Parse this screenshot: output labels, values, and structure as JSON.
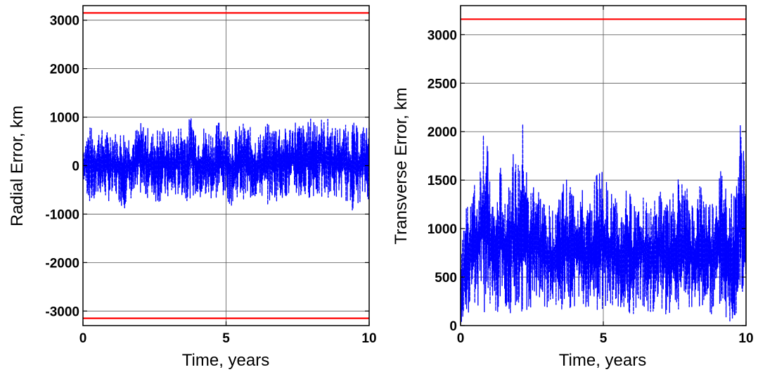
{
  "chart_data": [
    {
      "type": "line",
      "title": "",
      "xlabel": "Time, years",
      "ylabel": "Radial Error, km",
      "xlim": [
        0,
        10
      ],
      "ylim": [
        -3300,
        3300
      ],
      "xticks": [
        0,
        5,
        10
      ],
      "xtick_labels": [
        "0",
        "5",
        "10"
      ],
      "yticks": [
        -3000,
        -2000,
        -1000,
        0,
        1000,
        2000,
        3000
      ],
      "ytick_labels": [
        "-3000",
        "-2000",
        "-1000",
        "0",
        "1000",
        "2000",
        "3000"
      ],
      "grid": true,
      "legend": "none",
      "series": [
        {
          "style": "dashed",
          "color": "#0000ff",
          "x": [
            0,
            0.2,
            0.4,
            0.6,
            0.8,
            1.0,
            1.2,
            1.4,
            1.6,
            1.8,
            2.0,
            2.2,
            2.4,
            2.6,
            2.8,
            3.0,
            3.2,
            3.4,
            3.6,
            3.8,
            4.0,
            4.2,
            4.4,
            4.6,
            4.8,
            5.0,
            5.2,
            5.4,
            5.6,
            5.8,
            6.0,
            6.2,
            6.4,
            6.6,
            6.8,
            7.0,
            7.2,
            7.4,
            7.6,
            7.8,
            8.0,
            8.2,
            8.4,
            8.6,
            8.8,
            9.0,
            9.2,
            9.4,
            9.6,
            9.8,
            10.0
          ],
          "y_upper": [
            400,
            850,
            750,
            800,
            700,
            850,
            650,
            800,
            700,
            750,
            900,
            850,
            700,
            800,
            850,
            750,
            700,
            900,
            800,
            1130,
            700,
            850,
            800,
            750,
            1050,
            850,
            700,
            800,
            900,
            850,
            650,
            700,
            900,
            800,
            1000,
            750,
            850,
            1000,
            900,
            850,
            1050,
            1130,
            950,
            1000,
            800,
            850,
            850,
            950,
            800,
            850,
            850
          ],
          "y_lower": [
            -300,
            -750,
            -850,
            -600,
            -700,
            -800,
            -650,
            -950,
            -700,
            -750,
            -600,
            -700,
            -650,
            -800,
            -700,
            -750,
            -700,
            -600,
            -750,
            -650,
            -700,
            -800,
            -700,
            -750,
            -650,
            -700,
            -850,
            -650,
            -700,
            -750,
            -700,
            -650,
            -850,
            -700,
            -750,
            -650,
            -700,
            -650,
            -750,
            -700,
            -650,
            -700,
            -750,
            -650,
            -700,
            -650,
            -750,
            -950,
            -800,
            -700,
            -700
          ]
        },
        {
          "style": "solid",
          "color": "#ff0000",
          "x": [
            0,
            10
          ],
          "y": [
            3150,
            3150
          ]
        },
        {
          "style": "solid",
          "color": "#ff0000",
          "x": [
            0,
            10
          ],
          "y": [
            -3150,
            -3150
          ]
        }
      ]
    },
    {
      "type": "line",
      "title": "",
      "xlabel": "Time, years",
      "ylabel": "Transverse Error, km",
      "xlim": [
        0,
        10
      ],
      "ylim": [
        0,
        3300
      ],
      "xticks": [
        0,
        5,
        10
      ],
      "xtick_labels": [
        "0",
        "5",
        "10"
      ],
      "yticks": [
        0,
        500,
        1000,
        1500,
        2000,
        2500,
        3000
      ],
      "ytick_labels": [
        "0",
        "500",
        "1000",
        "1500",
        "2000",
        "2500",
        "3000"
      ],
      "grid": true,
      "legend": "none",
      "series": [
        {
          "style": "dashed",
          "color": "#0000ff",
          "x": [
            0,
            0.2,
            0.4,
            0.6,
            0.8,
            1.0,
            1.2,
            1.4,
            1.6,
            1.8,
            2.0,
            2.2,
            2.4,
            2.6,
            2.8,
            3.0,
            3.2,
            3.4,
            3.6,
            3.8,
            4.0,
            4.2,
            4.4,
            4.6,
            4.8,
            5.0,
            5.2,
            5.4,
            5.6,
            5.8,
            6.0,
            6.2,
            6.4,
            6.6,
            6.8,
            7.0,
            7.2,
            7.4,
            7.6,
            7.8,
            8.0,
            8.2,
            8.4,
            8.6,
            8.8,
            9.0,
            9.2,
            9.4,
            9.6,
            9.8,
            10.0
          ],
          "y_upper": [
            700,
            1300,
            1550,
            1400,
            2180,
            1700,
            1200,
            1650,
            1400,
            1900,
            1600,
            2150,
            1300,
            1650,
            1400,
            1300,
            1200,
            1450,
            1500,
            1550,
            1400,
            1500,
            1200,
            1350,
            1700,
            1600,
            1400,
            1350,
            1150,
            1500,
            1300,
            1400,
            1450,
            1200,
            1300,
            1400,
            1250,
            1350,
            1550,
            1450,
            1400,
            1250,
            1500,
            1350,
            1300,
            1550,
            1650,
            1400,
            1350,
            2100,
            1900
          ],
          "y_lower": [
            0,
            150,
            100,
            200,
            50,
            150,
            100,
            100,
            200,
            100,
            150,
            100,
            200,
            150,
            100,
            150,
            200,
            100,
            150,
            100,
            200,
            150,
            100,
            200,
            150,
            100,
            150,
            200,
            100,
            150,
            100,
            150,
            200,
            100,
            150,
            200,
            100,
            150,
            100,
            200,
            150,
            100,
            200,
            150,
            100,
            200,
            150,
            0,
            100,
            150,
            100
          ]
        },
        {
          "style": "solid",
          "color": "#ff0000",
          "x": [
            0,
            10
          ],
          "y": [
            3160,
            3160
          ]
        }
      ]
    }
  ]
}
